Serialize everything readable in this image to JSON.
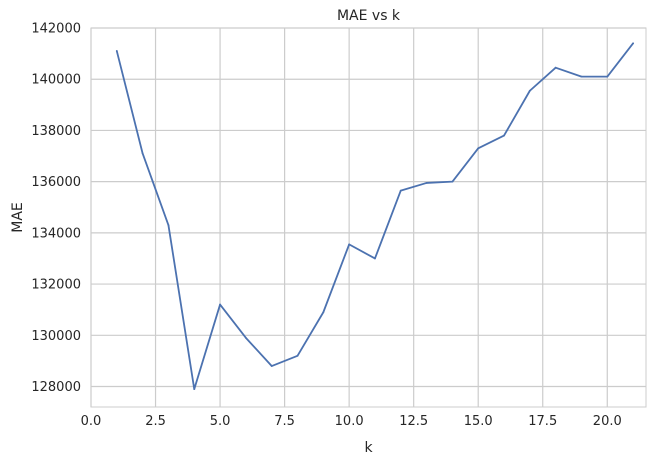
{
  "chart_data": {
    "type": "line",
    "title": "MAE vs k",
    "xlabel": "k",
    "ylabel": "MAE",
    "xlim": [
      0.0,
      21.5
    ],
    "ylim": [
      127200,
      142000
    ],
    "xticks": [
      0.0,
      2.5,
      5.0,
      7.5,
      10.0,
      12.5,
      15.0,
      17.5,
      20.0
    ],
    "xtick_labels": [
      "0.0",
      "2.5",
      "5.0",
      "7.5",
      "10.0",
      "12.5",
      "15.0",
      "17.5",
      "20.0"
    ],
    "yticks": [
      128000,
      130000,
      132000,
      134000,
      136000,
      138000,
      140000,
      142000
    ],
    "ytick_labels": [
      "128000",
      "130000",
      "132000",
      "134000",
      "136000",
      "138000",
      "140000",
      "142000"
    ],
    "grid": true,
    "series": [
      {
        "color": "#4c72b0",
        "x": [
          1,
          2,
          3,
          4,
          5,
          6,
          7,
          8,
          9,
          10,
          11,
          12,
          13,
          14,
          15,
          16,
          17,
          18,
          19,
          20,
          21
        ],
        "y": [
          141100,
          137100,
          134300,
          127900,
          131200,
          129900,
          128800,
          129200,
          130900,
          133550,
          133000,
          135650,
          135950,
          136000,
          137300,
          137800,
          139550,
          140450,
          140100,
          140100,
          141400
        ]
      }
    ]
  }
}
